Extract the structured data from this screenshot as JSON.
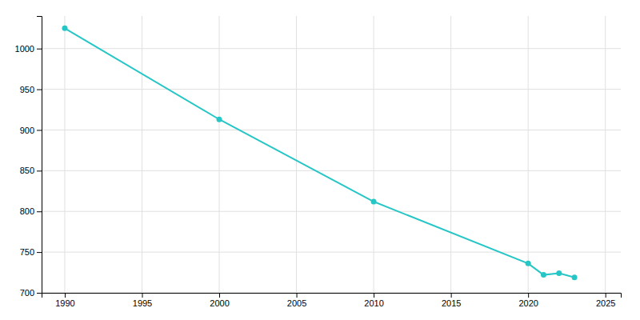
{
  "chart_data": {
    "type": "line",
    "x": [
      1990,
      2000,
      2010,
      2020,
      2021,
      2022,
      2023
    ],
    "values": [
      1025,
      913,
      812,
      736,
      722,
      724,
      719
    ],
    "color": "#26c6c6",
    "marker": "circle",
    "xlim": [
      1988.5,
      2026
    ],
    "ylim": [
      700,
      1040
    ],
    "xticks": [
      1990,
      1995,
      2000,
      2005,
      2010,
      2015,
      2020,
      2025
    ],
    "yticks": [
      700,
      750,
      800,
      850,
      900,
      950,
      1000
    ],
    "grid": true
  }
}
